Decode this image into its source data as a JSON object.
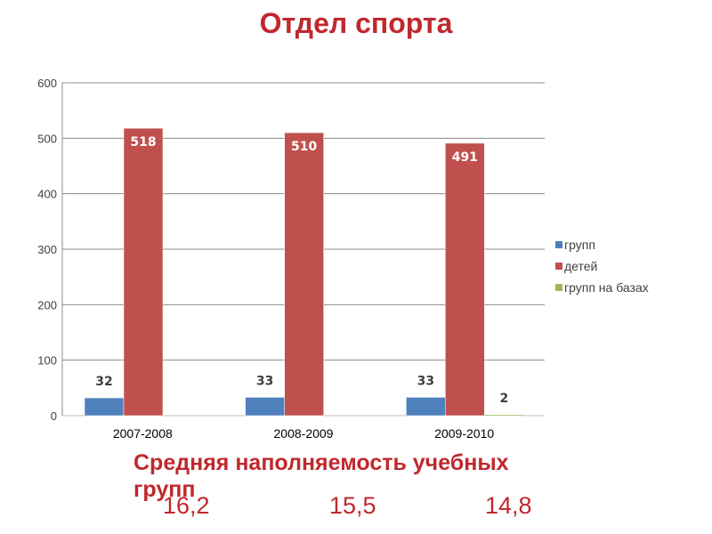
{
  "title": "Отдел спорта",
  "chart_data": {
    "type": "bar",
    "categories": [
      "2007-2008",
      "2008-2009",
      "2009-2010"
    ],
    "series": [
      {
        "name": "групп",
        "values": [
          32,
          33,
          33
        ],
        "color": "#4f81bd"
      },
      {
        "name": "детей",
        "values": [
          518,
          510,
          491
        ],
        "color": "#c0504d"
      },
      {
        "name": "групп на базах",
        "values": [
          0,
          0,
          2
        ],
        "color": "#9bbb59"
      }
    ],
    "data_labels": [
      [
        "32",
        "33",
        "33"
      ],
      [
        "518",
        "510",
        "491"
      ],
      [
        "",
        "",
        "2"
      ]
    ],
    "ylim": [
      0,
      600
    ],
    "yticks": [
      0,
      100,
      200,
      300,
      400,
      500,
      600
    ],
    "grid": true,
    "legend": "right"
  },
  "footer": {
    "caption": "Средняя наполняемость учебных групп",
    "averages": [
      "16,2",
      "15,5",
      "14,8"
    ]
  }
}
